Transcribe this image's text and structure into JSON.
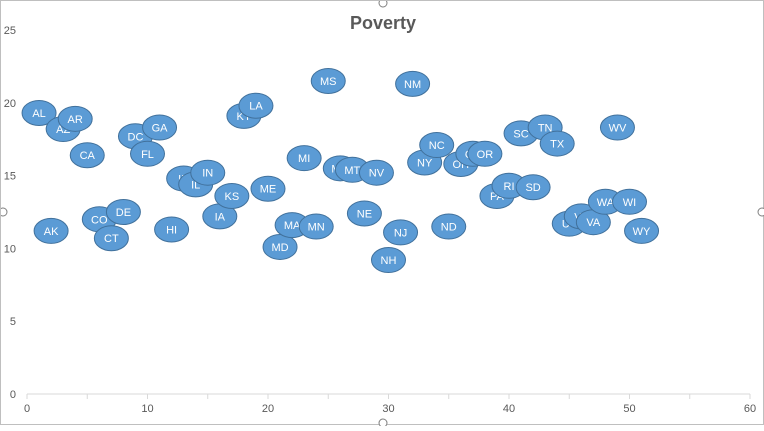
{
  "chart_data": {
    "type": "scatter",
    "title": "Poverty",
    "xlabel": "",
    "ylabel": "",
    "xlim": [
      0,
      60
    ],
    "ylim": [
      0,
      25
    ],
    "x_ticks": [
      0,
      10,
      20,
      30,
      40,
      50,
      60
    ],
    "y_ticks": [
      0,
      5,
      10,
      15,
      20,
      25
    ],
    "grid": false,
    "marker_color": "#5b9bd5",
    "marker_edge_color": "#41719c",
    "label_color": "#ffffff",
    "points": [
      {
        "label": "AL",
        "x": 1,
        "y": 19.3
      },
      {
        "label": "AK",
        "x": 2,
        "y": 11.2
      },
      {
        "label": "AZ",
        "x": 3,
        "y": 18.2
      },
      {
        "label": "AR",
        "x": 4,
        "y": 18.9
      },
      {
        "label": "CA",
        "x": 5,
        "y": 16.4
      },
      {
        "label": "CO",
        "x": 6,
        "y": 12.0
      },
      {
        "label": "CT",
        "x": 7,
        "y": 10.7
      },
      {
        "label": "DE",
        "x": 8,
        "y": 12.5
      },
      {
        "label": "DC",
        "x": 9,
        "y": 17.7
      },
      {
        "label": "FL",
        "x": 10,
        "y": 16.5
      },
      {
        "label": "GA",
        "x": 11,
        "y": 18.3
      },
      {
        "label": "HI",
        "x": 12,
        "y": 11.3
      },
      {
        "label": "ID",
        "x": 13,
        "y": 14.8
      },
      {
        "label": "IL",
        "x": 14,
        "y": 14.4
      },
      {
        "label": "IN",
        "x": 15,
        "y": 15.2
      },
      {
        "label": "IA",
        "x": 16,
        "y": 12.2
      },
      {
        "label": "KS",
        "x": 17,
        "y": 13.6
      },
      {
        "label": "KY",
        "x": 18,
        "y": 19.1
      },
      {
        "label": "LA",
        "x": 19,
        "y": 19.8
      },
      {
        "label": "ME",
        "x": 20,
        "y": 14.1
      },
      {
        "label": "MD",
        "x": 21,
        "y": 10.1
      },
      {
        "label": "MA",
        "x": 22,
        "y": 11.6
      },
      {
        "label": "MI",
        "x": 23,
        "y": 16.2
      },
      {
        "label": "MN",
        "x": 24,
        "y": 11.5
      },
      {
        "label": "MS",
        "x": 25,
        "y": 21.5
      },
      {
        "label": "MO",
        "x": 26,
        "y": 15.5
      },
      {
        "label": "MT",
        "x": 27,
        "y": 15.4
      },
      {
        "label": "NE",
        "x": 28,
        "y": 12.4
      },
      {
        "label": "NV",
        "x": 29,
        "y": 15.2
      },
      {
        "label": "NH",
        "x": 30,
        "y": 9.2
      },
      {
        "label": "NJ",
        "x": 31,
        "y": 11.1
      },
      {
        "label": "NM",
        "x": 32,
        "y": 21.3
      },
      {
        "label": "NY",
        "x": 33,
        "y": 15.9
      },
      {
        "label": "NC",
        "x": 34,
        "y": 17.1
      },
      {
        "label": "ND",
        "x": 35,
        "y": 11.5
      },
      {
        "label": "OH",
        "x": 36,
        "y": 15.8
      },
      {
        "label": "OK",
        "x": 37,
        "y": 16.5
      },
      {
        "label": "OR",
        "x": 38,
        "y": 16.5
      },
      {
        "label": "PA",
        "x": 39,
        "y": 13.6
      },
      {
        "label": "RI",
        "x": 40,
        "y": 14.3
      },
      {
        "label": "SC",
        "x": 41,
        "y": 17.9
      },
      {
        "label": "SD",
        "x": 42,
        "y": 14.2
      },
      {
        "label": "TN",
        "x": 43,
        "y": 18.3
      },
      {
        "label": "TX",
        "x": 44,
        "y": 17.2
      },
      {
        "label": "UT",
        "x": 45,
        "y": 11.7
      },
      {
        "label": "VT",
        "x": 46,
        "y": 12.2
      },
      {
        "label": "VA",
        "x": 47,
        "y": 11.8
      },
      {
        "label": "WA",
        "x": 48,
        "y": 13.2
      },
      {
        "label": "WV",
        "x": 49,
        "y": 18.3
      },
      {
        "label": "WI",
        "x": 50,
        "y": 13.2
      },
      {
        "label": "WY",
        "x": 51,
        "y": 11.2
      }
    ]
  }
}
